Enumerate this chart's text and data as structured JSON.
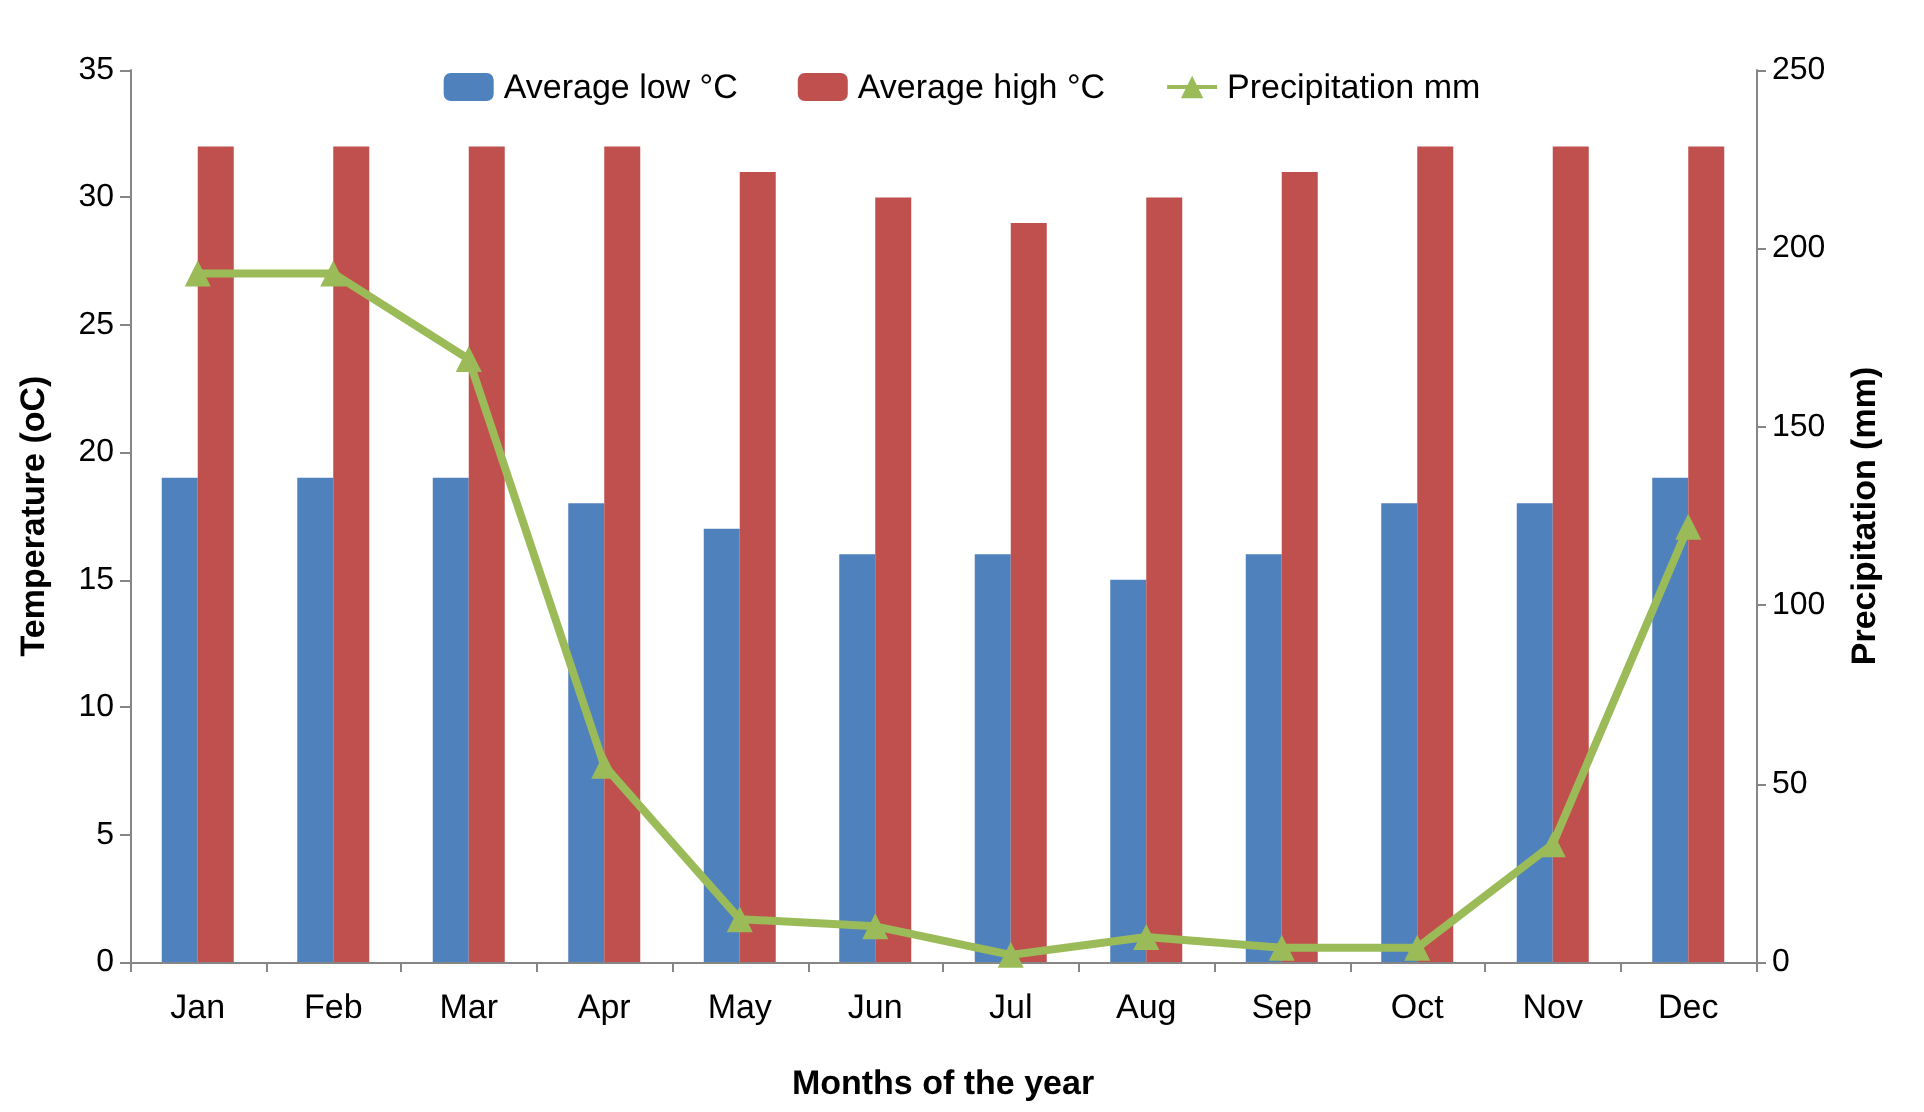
{
  "chart_data": {
    "type": "bar",
    "xlabel": "Months of the year",
    "ylabel": "Temperature (oC)",
    "y2label": "Precipitation (mm)",
    "categories": [
      "Jan",
      "Feb",
      "Mar",
      "Apr",
      "May",
      "Jun",
      "Jul",
      "Aug",
      "Sep",
      "Oct",
      "Nov",
      "Dec"
    ],
    "series": [
      {
        "name": "Average low °C",
        "color": "#4f81bd",
        "values": [
          19,
          19,
          19,
          18,
          17,
          16,
          16,
          15,
          16,
          18,
          18,
          19
        ]
      },
      {
        "name": "Average high °C",
        "color": "#c0504d",
        "values": [
          32,
          32,
          32,
          32,
          31,
          30,
          29,
          30,
          31,
          32,
          32,
          32
        ]
      },
      {
        "name": "Precipitation mm",
        "type": "line",
        "axis": "y2",
        "color": "#9bbb59",
        "marker": "triangle",
        "values": [
          193,
          193,
          169,
          55,
          12,
          10,
          2,
          7,
          4,
          4,
          33,
          122
        ]
      }
    ],
    "ylim": [
      0,
      35
    ],
    "yticks": [
      0,
      5,
      10,
      15,
      20,
      25,
      30,
      35
    ],
    "y2lim": [
      0,
      250
    ],
    "y2ticks": [
      0,
      50,
      100,
      150,
      200,
      250
    ],
    "grid": false,
    "legend": "top"
  }
}
